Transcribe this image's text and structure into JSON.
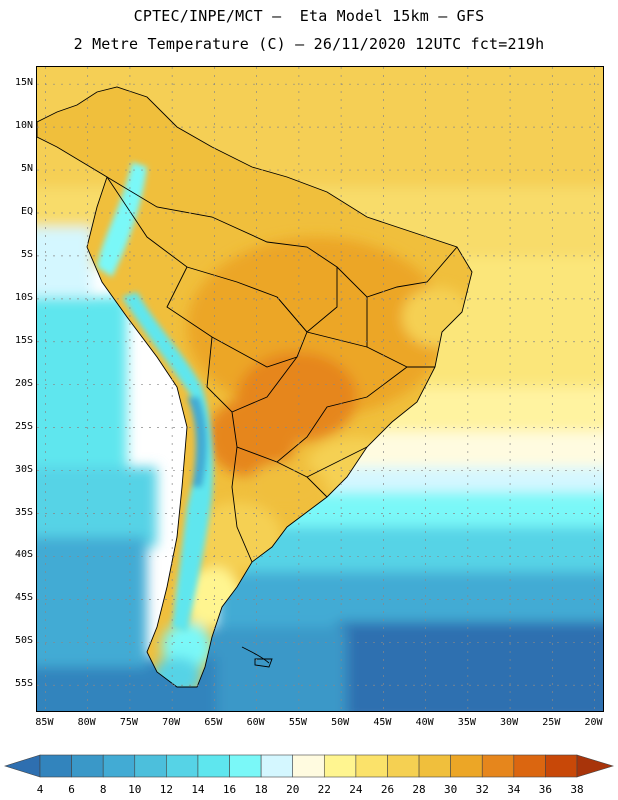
{
  "header": {
    "title_line1": "CPTEC/INPE/MCT –  Eta Model 15km – GFS",
    "title_line2": "2 Metre Temperature (C) – 26/11/2020 12UTC fct=219h"
  },
  "map": {
    "region": "South America",
    "lon_range": [
      -86,
      -19
    ],
    "lat_range": [
      -58,
      17
    ],
    "lat_labels": [
      "15N",
      "10N",
      "5N",
      "EQ",
      "5S",
      "10S",
      "15S",
      "20S",
      "25S",
      "30S",
      "35S",
      "40S",
      "45S",
      "50S",
      "55S"
    ],
    "lat_values": [
      15,
      10,
      5,
      0,
      -5,
      -10,
      -15,
      -20,
      -25,
      -30,
      -35,
      -40,
      -45,
      -50,
      -55
    ],
    "lon_labels": [
      "85W",
      "80W",
      "75W",
      "70W",
      "65W",
      "60W",
      "55W",
      "50W",
      "45W",
      "40W",
      "35W",
      "30W",
      "25W",
      "20W"
    ],
    "lon_values": [
      -85,
      -80,
      -75,
      -70,
      -65,
      -60,
      -55,
      -50,
      -45,
      -40,
      -35,
      -30,
      -25,
      -20
    ]
  },
  "colorbar": {
    "labels": [
      "4",
      "6",
      "8",
      "10",
      "12",
      "14",
      "16",
      "18",
      "20",
      "22",
      "24",
      "26",
      "28",
      "30",
      "32",
      "34",
      "36",
      "38"
    ],
    "colors": [
      "#2e6fb0",
      "#3284bd",
      "#3a98c8",
      "#42abd4",
      "#4cbfdc",
      "#56d3e6",
      "#5ee6ee",
      "#7af8f8",
      "#d4f7ff",
      "#fffbe0",
      "#fff590",
      "#fbe26a",
      "#f5d052",
      "#f0bf3c",
      "#eca626",
      "#e6861c",
      "#db6610",
      "#c84808",
      "#a8340a"
    ]
  }
}
